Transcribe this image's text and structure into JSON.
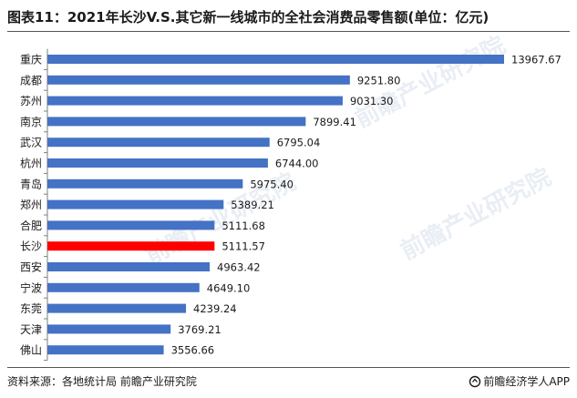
{
  "title": "图表11：2021年长沙V.S.其它新一线城市的全社会消费品零售额(单位：亿元)",
  "source": "资料来源：各地统计局 前瞻产业研究院",
  "brand": "前瞻经济学人APP",
  "watermark": "前瞻产业研究院",
  "colors": {
    "bar": "#4472c4",
    "highlight": "#ff0000",
    "axis": "#7f7f7f"
  },
  "chart_data": {
    "type": "bar",
    "orientation": "horizontal",
    "title": "图表11：2021年长沙V.S.其它新一线城市的全社会消费品零售额(单位：亿元)",
    "xlabel": "",
    "ylabel": "",
    "xlim": [
      0,
      13967.67
    ],
    "categories": [
      "重庆",
      "成都",
      "苏州",
      "南京",
      "武汉",
      "杭州",
      "青岛",
      "郑州",
      "合肥",
      "长沙",
      "西安",
      "宁波",
      "东莞",
      "天津",
      "佛山"
    ],
    "values": [
      13967.67,
      9251.8,
      9031.3,
      7899.41,
      6795.04,
      6744.0,
      5975.4,
      5389.21,
      5111.68,
      5111.57,
      4963.42,
      4649.1,
      4239.24,
      3769.21,
      3556.66
    ],
    "value_labels": [
      "13967.67",
      "9251.80",
      "9031.30",
      "7899.41",
      "6795.04",
      "6744.00",
      "5975.40",
      "5389.21",
      "5111.68",
      "5111.57",
      "4963.42",
      "4649.10",
      "4239.24",
      "3769.21",
      "3556.66"
    ],
    "highlight": "长沙",
    "grid": false
  }
}
